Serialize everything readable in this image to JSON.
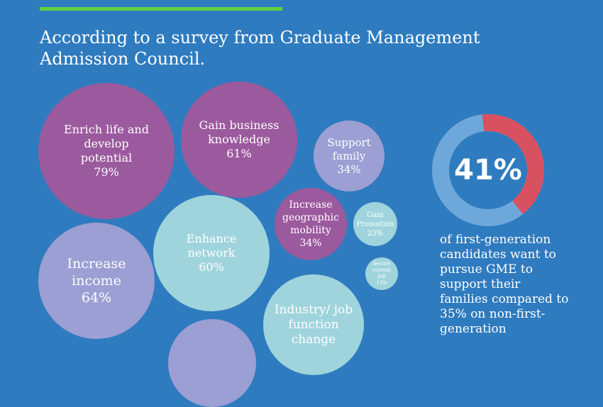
{
  "header": {
    "title": "According to a survey from Graduate Management Admission Council."
  },
  "colors": {
    "background": "#2f7bbf",
    "accent_bar": "#5ed33f",
    "purple": "#9b5a9e",
    "lavender": "#9b9fd3",
    "teal": "#9fd4dc",
    "donut_red": "#d85160",
    "donut_blue": "#6ea8da"
  },
  "chart_data": {
    "type": "bubble",
    "title": "",
    "series": [
      {
        "label": "Enrich life and\ndevelop\npotential",
        "value": 79,
        "display": "79%"
      },
      {
        "label": "Gain business\nknowledge",
        "value": 61,
        "display": "61%"
      },
      {
        "label": "Support\nfamily",
        "value": 34,
        "display": "34%"
      },
      {
        "label": "Increase\nincome",
        "value": 64,
        "display": "64%"
      },
      {
        "label": "Enhance\nnetwork",
        "value": 60,
        "display": "60%"
      },
      {
        "label": "Increase\ngeographic\nmobility",
        "value": 34,
        "display": "34%"
      },
      {
        "label": "Gain\nPromotion",
        "value": 23,
        "display": "23%"
      },
      {
        "label": "Secure\ncurrent\njob",
        "value": 13,
        "display": "13%"
      },
      {
        "label": "Industry/ job\nfunction\nchange",
        "value": null,
        "display": ""
      },
      {
        "label": "",
        "value": null,
        "display": ""
      }
    ]
  },
  "stat": {
    "percent_label": "41%",
    "percent": 41,
    "text": "of first-generation\ncandidates want to\npursue GME to\nsupport their\nfamilies compared to\n35% on non-first-\ngeneration"
  }
}
